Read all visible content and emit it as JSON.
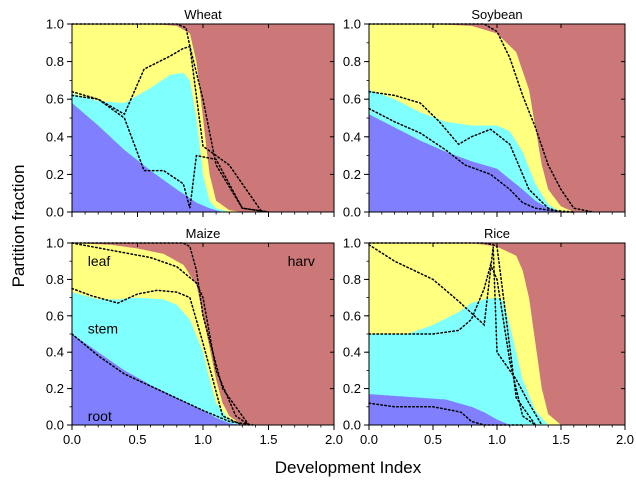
{
  "figure": {
    "xlabel": "Development Index",
    "ylabel": "Partition fraction"
  },
  "colors": {
    "root": "#8080ff",
    "stem": "#80ffff",
    "leaf": "#ffff80",
    "harv": "#cd7878",
    "dotted": "#000000"
  },
  "chart_data": [
    {
      "type": "area",
      "title": "Wheat",
      "xlim": [
        0,
        2
      ],
      "ylim": [
        0,
        1
      ],
      "xticks": [
        "0.0",
        "0.5",
        "1.0",
        "1.5",
        "2.0"
      ],
      "yticks": [
        "0.0",
        "0.2",
        "0.4",
        "0.6",
        "0.8",
        "1.0"
      ],
      "grid": false,
      "series": [
        {
          "x": [
            0,
            0.2,
            0.4,
            0.6,
            0.8,
            0.95,
            1.05,
            1.15,
            1.3,
            2.0
          ],
          "values": [
            0.58,
            0.46,
            0.33,
            0.22,
            0.12,
            0.05,
            0.02,
            0.0,
            0.0,
            0.0
          ]
        },
        {
          "x": [
            0,
            0.2,
            0.4,
            0.6,
            0.75,
            0.85,
            0.9,
            0.95,
            1.0,
            1.05,
            1.1,
            1.2,
            2.0
          ],
          "values": [
            0.63,
            0.59,
            0.58,
            0.66,
            0.73,
            0.74,
            0.7,
            0.5,
            0.2,
            0.06,
            0.02,
            0.0,
            0.0
          ]
        },
        {
          "x": [
            0,
            0.6,
            0.8,
            0.9,
            0.95,
            1.0,
            1.05,
            1.1,
            1.2,
            1.3,
            2.0
          ],
          "values": [
            1.0,
            1.0,
            0.99,
            0.95,
            0.8,
            0.5,
            0.2,
            0.06,
            0.01,
            0.0,
            0.0
          ]
        }
      ],
      "dotted": [
        {
          "x": [
            0,
            0.2,
            0.4,
            0.55,
            0.75,
            0.85,
            0.9,
            1.0,
            1.2,
            1.45
          ],
          "y": [
            0.62,
            0.6,
            0.52,
            0.76,
            0.83,
            0.87,
            0.88,
            0.35,
            0.25,
            0.0
          ]
        },
        {
          "x": [
            0,
            0.2,
            0.4,
            0.55,
            0.7,
            0.85,
            0.9,
            0.95,
            1.1,
            1.3,
            1.5
          ],
          "y": [
            0.64,
            0.6,
            0.5,
            0.22,
            0.22,
            0.15,
            0.02,
            0.3,
            0.28,
            0.02,
            0.0
          ]
        },
        {
          "x": [
            0,
            0.6,
            0.8,
            0.87,
            0.9,
            1.0,
            1.1,
            1.3,
            1.5
          ],
          "y": [
            1.0,
            1.0,
            1.0,
            0.98,
            0.88,
            0.6,
            0.25,
            0.02,
            0.0
          ]
        }
      ]
    },
    {
      "type": "area",
      "title": "Soybean",
      "xlim": [
        0,
        2
      ],
      "ylim": [
        0,
        1
      ],
      "xticks": [
        "0.0",
        "0.5",
        "1.0",
        "1.5",
        "2.0"
      ],
      "yticks": [
        "0.0",
        "0.2",
        "0.4",
        "0.6",
        "0.8",
        "1.0"
      ],
      "grid": false,
      "series": [
        {
          "x": [
            0,
            0.2,
            0.4,
            0.6,
            0.8,
            1.0,
            1.2,
            1.3,
            1.4,
            1.5,
            2.0
          ],
          "values": [
            0.52,
            0.45,
            0.38,
            0.32,
            0.27,
            0.23,
            0.12,
            0.06,
            0.02,
            0.0,
            0.0
          ]
        },
        {
          "x": [
            0,
            0.2,
            0.4,
            0.6,
            0.8,
            1.0,
            1.1,
            1.2,
            1.3,
            1.4,
            1.5,
            2.0
          ],
          "values": [
            0.65,
            0.6,
            0.53,
            0.48,
            0.46,
            0.46,
            0.43,
            0.32,
            0.15,
            0.04,
            0.0,
            0.0
          ]
        },
        {
          "x": [
            0,
            0.5,
            0.8,
            1.0,
            1.15,
            1.25,
            1.3,
            1.35,
            1.4,
            1.5,
            1.6,
            2.0
          ],
          "values": [
            1.0,
            1.0,
            0.99,
            0.95,
            0.85,
            0.65,
            0.45,
            0.25,
            0.12,
            0.03,
            0.0,
            0.0
          ]
        }
      ],
      "dotted": [
        {
          "x": [
            0,
            0.2,
            0.4,
            0.6,
            0.75,
            0.95,
            1.1,
            1.2,
            1.3,
            1.4,
            1.6
          ],
          "y": [
            0.55,
            0.48,
            0.42,
            0.33,
            0.25,
            0.2,
            0.12,
            0.05,
            0.02,
            0.01,
            0.0
          ]
        },
        {
          "x": [
            0,
            0.2,
            0.4,
            0.55,
            0.7,
            0.8,
            0.95,
            1.1,
            1.25,
            1.4,
            1.5,
            1.6
          ],
          "y": [
            0.64,
            0.62,
            0.58,
            0.48,
            0.36,
            0.4,
            0.44,
            0.36,
            0.12,
            0.02,
            0.0,
            0.0
          ]
        },
        {
          "x": [
            0,
            0.5,
            0.9,
            1.0,
            1.1,
            1.2,
            1.3,
            1.4,
            1.5,
            1.6,
            1.75
          ],
          "y": [
            1.0,
            1.0,
            1.0,
            0.96,
            0.82,
            0.62,
            0.45,
            0.25,
            0.12,
            0.02,
            0.0
          ]
        }
      ]
    },
    {
      "type": "area",
      "title": "Maize",
      "xlim": [
        0,
        2
      ],
      "ylim": [
        0,
        1
      ],
      "xticks": [
        "0.0",
        "0.5",
        "1.0",
        "1.5",
        "2.0"
      ],
      "yticks": [
        "0.0",
        "0.2",
        "0.4",
        "0.6",
        "0.8",
        "1.0"
      ],
      "grid": false,
      "series": [
        {
          "x": [
            0,
            0.2,
            0.4,
            0.6,
            0.8,
            1.0,
            1.1,
            1.2,
            1.3,
            2.0
          ],
          "values": [
            0.5,
            0.4,
            0.3,
            0.22,
            0.15,
            0.08,
            0.04,
            0.01,
            0.0,
            0.0
          ]
        },
        {
          "x": [
            0,
            0.2,
            0.35,
            0.5,
            0.7,
            0.8,
            0.9,
            1.0,
            1.05,
            1.1,
            1.2,
            1.3,
            2.0
          ],
          "values": [
            0.73,
            0.69,
            0.69,
            0.7,
            0.69,
            0.66,
            0.58,
            0.4,
            0.25,
            0.12,
            0.03,
            0.0,
            0.0
          ]
        },
        {
          "x": [
            0,
            0.3,
            0.5,
            0.7,
            0.85,
            0.95,
            1.0,
            1.1,
            1.15,
            1.2,
            1.3,
            2.0
          ],
          "values": [
            1.0,
            0.99,
            0.97,
            0.94,
            0.88,
            0.77,
            0.6,
            0.25,
            0.12,
            0.05,
            0.0,
            0.0
          ]
        }
      ],
      "dotted": [
        {
          "x": [
            0,
            0.2,
            0.4,
            0.7,
            1.0,
            1.2,
            1.38
          ],
          "y": [
            0.5,
            0.38,
            0.28,
            0.18,
            0.08,
            0.02,
            0.0
          ]
        },
        {
          "x": [
            0,
            0.15,
            0.35,
            0.5,
            0.65,
            0.8,
            0.9,
            1.0,
            1.15,
            1.3
          ],
          "y": [
            0.75,
            0.71,
            0.67,
            0.72,
            0.74,
            0.73,
            0.7,
            0.45,
            0.05,
            0.0
          ]
        },
        {
          "x": [
            0,
            0.3,
            0.6,
            0.8,
            0.95,
            1.0,
            1.1,
            1.25,
            1.35
          ],
          "y": [
            1.0,
            0.96,
            0.92,
            0.87,
            0.78,
            0.7,
            0.3,
            0.05,
            0.0
          ]
        },
        {
          "x": [
            0,
            0.5,
            0.85,
            0.9,
            0.95,
            1.0,
            1.15,
            1.35
          ],
          "y": [
            1.0,
            1.0,
            1.0,
            0.98,
            0.85,
            0.6,
            0.2,
            0.0
          ]
        }
      ],
      "annotations": [
        {
          "text": "leaf",
          "x": 0.12,
          "y": 0.9
        },
        {
          "text": "stem",
          "x": 0.12,
          "y": 0.53
        },
        {
          "text": "root",
          "x": 0.12,
          "y": 0.05
        },
        {
          "text": "harv",
          "x": 1.75,
          "y": 0.9
        }
      ]
    },
    {
      "type": "area",
      "title": "Rice",
      "xlim": [
        0,
        2
      ],
      "ylim": [
        0,
        1
      ],
      "xticks": [
        "0.0",
        "0.5",
        "1.0",
        "1.5",
        "2.0"
      ],
      "yticks": [
        "0.0",
        "0.2",
        "0.4",
        "0.6",
        "0.8",
        "1.0"
      ],
      "grid": false,
      "series": [
        {
          "x": [
            0,
            0.2,
            0.4,
            0.6,
            0.8,
            0.9,
            1.0,
            1.1,
            1.3,
            2.0
          ],
          "values": [
            0.17,
            0.16,
            0.15,
            0.14,
            0.1,
            0.07,
            0.03,
            0.0,
            0.0,
            0.0
          ]
        },
        {
          "x": [
            0,
            0.3,
            0.5,
            0.7,
            0.8,
            0.9,
            1.0,
            1.05,
            1.1,
            1.2,
            1.3,
            1.4,
            2.0
          ],
          "values": [
            0.5,
            0.5,
            0.55,
            0.62,
            0.67,
            0.69,
            0.7,
            0.68,
            0.55,
            0.25,
            0.08,
            0.0,
            0.0
          ]
        },
        {
          "x": [
            0,
            0.5,
            0.8,
            1.0,
            1.15,
            1.2,
            1.25,
            1.3,
            1.35,
            1.4,
            1.5,
            2.0
          ],
          "values": [
            1.0,
            1.0,
            1.0,
            0.98,
            0.93,
            0.85,
            0.7,
            0.45,
            0.2,
            0.06,
            0.0,
            0.0
          ]
        }
      ],
      "dotted": [
        {
          "x": [
            0,
            0.2,
            0.5,
            0.65,
            0.72,
            0.8,
            0.9,
            1.0,
            1.2
          ],
          "y": [
            0.12,
            0.1,
            0.1,
            0.08,
            0.07,
            0.02,
            0.0,
            0.0,
            0.0
          ]
        },
        {
          "x": [
            0,
            0.3,
            0.5,
            0.7,
            0.8,
            0.9,
            0.95,
            1.0,
            1.1,
            1.2,
            1.3
          ],
          "y": [
            0.5,
            0.5,
            0.5,
            0.52,
            0.58,
            0.75,
            0.88,
            0.8,
            0.35,
            0.05,
            0.0
          ]
        },
        {
          "x": [
            0,
            0.2,
            0.5,
            0.7,
            0.9,
            0.97,
            1.0,
            1.05,
            1.15,
            1.25,
            1.35
          ],
          "y": [
            0.99,
            0.9,
            0.8,
            0.68,
            0.55,
            0.98,
            0.4,
            0.35,
            0.25,
            0.12,
            0.0
          ]
        },
        {
          "x": [
            0,
            0.5,
            0.9,
            0.97,
            1.0,
            1.15,
            1.3
          ],
          "y": [
            1.0,
            1.0,
            1.0,
            0.99,
            0.98,
            0.15,
            0.0
          ]
        }
      ]
    }
  ]
}
